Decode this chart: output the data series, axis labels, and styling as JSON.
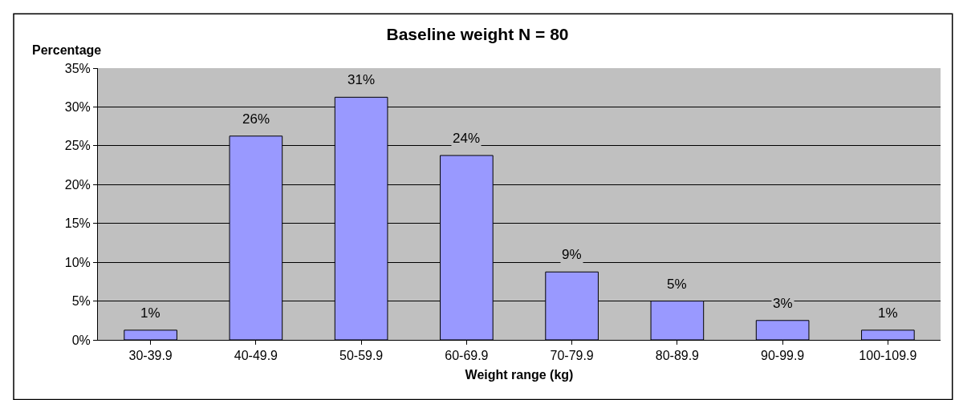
{
  "chart_data": {
    "type": "bar",
    "title": "Baseline weight N = 80",
    "xlabel": "Weight range (kg)",
    "ylabel": "Percentage",
    "categories": [
      "30-39.9",
      "40-49.9",
      "50-59.9",
      "60-69.9",
      "70-79.9",
      "80-89.9",
      "90-99.9",
      "100-109.9"
    ],
    "values": [
      1.25,
      26.25,
      31.25,
      23.75,
      8.75,
      5,
      2.5,
      1.25
    ],
    "value_labels": [
      "1%",
      "26%",
      "31%",
      "24%",
      "9%",
      "5%",
      "3%",
      "1%"
    ],
    "color": "#9999ff",
    "ylim": [
      0,
      35
    ],
    "yticks": [
      {
        "value": 0,
        "label": "0%"
      },
      {
        "value": 5,
        "label": "5%"
      },
      {
        "value": 10,
        "label": "10%"
      },
      {
        "value": 15,
        "label": "15%"
      },
      {
        "value": 20,
        "label": "20%"
      },
      {
        "value": 25,
        "label": "25%"
      },
      {
        "value": 30,
        "label": "30%"
      },
      {
        "value": 35,
        "label": "35%"
      }
    ],
    "grid": "y"
  }
}
